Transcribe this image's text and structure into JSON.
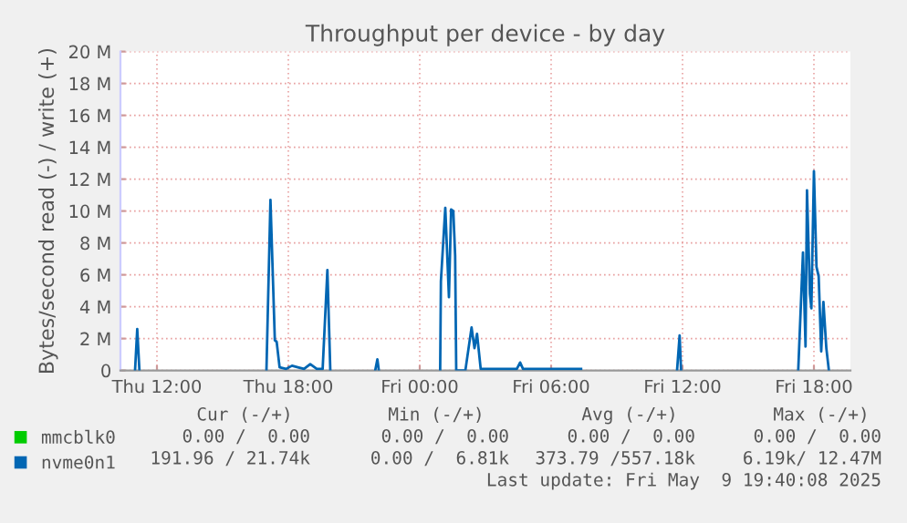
{
  "chart_data": {
    "type": "line",
    "title": "Throughput per device - by day",
    "ylabel": "Bytes/second read (-) / write (+)",
    "xlim": [
      "2025-05-08T10:20",
      "2025-05-09T19:40"
    ],
    "ylim": [
      0,
      20
    ],
    "xticks": [
      {
        "value": "2025-05-08T12:00",
        "label": "Thu 12:00"
      },
      {
        "value": "2025-05-08T18:00",
        "label": "Thu 18:00"
      },
      {
        "value": "2025-05-09T00:00",
        "label": "Fri 00:00"
      },
      {
        "value": "2025-05-09T06:00",
        "label": "Fri 06:00"
      },
      {
        "value": "2025-05-09T12:00",
        "label": "Fri 12:00"
      },
      {
        "value": "2025-05-09T18:00",
        "label": "Fri 18:00"
      }
    ],
    "yticks": [
      {
        "value": 0,
        "label": "0"
      },
      {
        "value": 2,
        "label": "2 M"
      },
      {
        "value": 4,
        "label": "4 M"
      },
      {
        "value": 6,
        "label": "6 M"
      },
      {
        "value": 8,
        "label": "8 M"
      },
      {
        "value": 10,
        "label": "10 M"
      },
      {
        "value": 12,
        "label": "12 M"
      },
      {
        "value": 14,
        "label": "14 M"
      },
      {
        "value": 16,
        "label": "16 M"
      },
      {
        "value": 18,
        "label": "18 M"
      },
      {
        "value": 20,
        "label": "20 M"
      }
    ],
    "grid": true,
    "legend": "bottom left",
    "series": [
      {
        "name": "mmcblk0",
        "color": "#00cc00"
      },
      {
        "name": "nvme0n1",
        "color": "#0066b3",
        "x": [
          "2025-05-08T11:00",
          "2025-05-08T11:06",
          "2025-05-08T11:12",
          "2025-05-08T11:30",
          "2025-05-08T17:00",
          "2025-05-08T17:11",
          "2025-05-08T17:23",
          "2025-05-08T17:28",
          "2025-05-08T17:36",
          "2025-05-08T17:54",
          "2025-05-08T18:10",
          "2025-05-08T18:26",
          "2025-05-08T18:43",
          "2025-05-08T19:00",
          "2025-05-08T19:18",
          "2025-05-08T19:34",
          "2025-05-08T19:47",
          "2025-05-08T19:55",
          "2025-05-08T21:00",
          "2025-05-08T21:58",
          "2025-05-08T22:04",
          "2025-05-08T22:08",
          "2025-05-08T23:00",
          "2025-05-09T00:56",
          "2025-05-09T00:58",
          "2025-05-09T01:10",
          "2025-05-09T01:20",
          "2025-05-09T01:26",
          "2025-05-09T01:32",
          "2025-05-09T01:37",
          "2025-05-09T01:40",
          "2025-05-09T01:53",
          "2025-05-09T02:05",
          "2025-05-09T02:22",
          "2025-05-09T02:30",
          "2025-05-09T02:37",
          "2025-05-09T02:47",
          "2025-05-09T04:26",
          "2025-05-09T04:35",
          "2025-05-09T04:43",
          "2025-05-09T07:22",
          "2025-05-09T08:00",
          "2025-05-09T11:45",
          "2025-05-09T11:52",
          "2025-05-09T11:56",
          "2025-05-09T13:00",
          "2025-05-09T17:17",
          "2025-05-09T17:30",
          "2025-05-09T17:37",
          "2025-05-09T17:41",
          "2025-05-09T17:49",
          "2025-05-09T17:53",
          "2025-05-09T18:00",
          "2025-05-09T18:07",
          "2025-05-09T18:13",
          "2025-05-09T18:20",
          "2025-05-09T18:26",
          "2025-05-09T18:34",
          "2025-05-09T18:41"
        ],
        "values": [
          0,
          2.6,
          0,
          null,
          0,
          10.7,
          1.9,
          1.8,
          0.2,
          0.1,
          0.3,
          0.2,
          0.1,
          0.4,
          0.1,
          0.1,
          6.3,
          0,
          null,
          0,
          0.7,
          0,
          null,
          0,
          5.6,
          10.2,
          4.6,
          10.1,
          10.0,
          7.2,
          0,
          0,
          0,
          2.7,
          1.4,
          2.3,
          0.1,
          0.1,
          0.5,
          0.1,
          0.1,
          null,
          0,
          2.2,
          0,
          null,
          0,
          7.4,
          1.5,
          11.3,
          4.8,
          3.9,
          12.5,
          6.5,
          5.9,
          1.2,
          4.3,
          1.4,
          0
        ]
      }
    ],
    "annotations": [
      "Cur (-/+)",
      "Min (-/+)",
      "Avg (-/+)",
      "Max (-/+)",
      "0.00 /  0.00",
      "0.00 /  0.00",
      "0.00 /  0.00",
      "0.00 /  0.00",
      "191.96 / 21.74k",
      "0.00 /  6.81k",
      "373.79 /557.18k",
      "6.19k/ 12.47M",
      "Last update: Fri May  9 19:40:08 2025"
    ]
  }
}
